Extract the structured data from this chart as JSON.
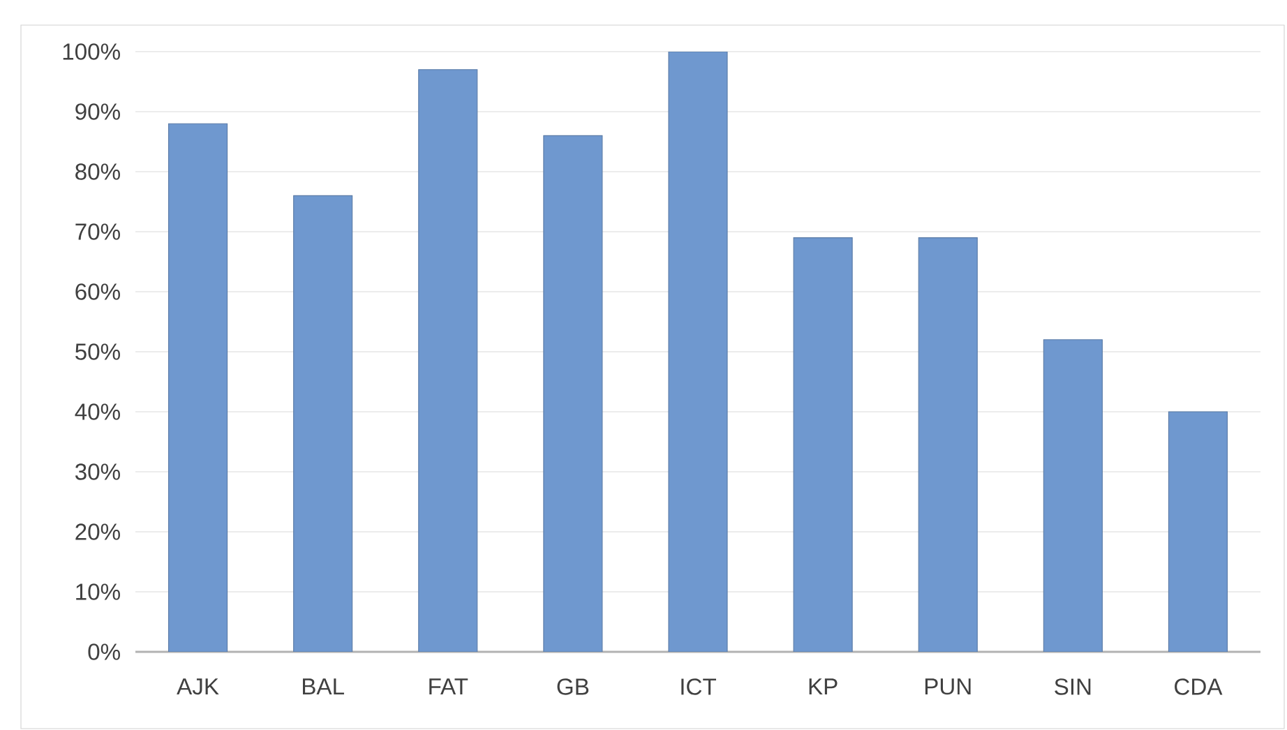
{
  "chart_data": {
    "type": "bar",
    "categories": [
      "AJK",
      "BAL",
      "FAT",
      "GB",
      "ICT",
      "KP",
      "PUN",
      "SIN",
      "CDA"
    ],
    "values": [
      88,
      76,
      97,
      86,
      100,
      69,
      69,
      52,
      40
    ],
    "color": "#6f98cf",
    "ylim": [
      0,
      100
    ],
    "yticks": [
      {
        "value": 0,
        "label": "0%"
      },
      {
        "value": 10,
        "label": "10%"
      },
      {
        "value": 20,
        "label": "20%"
      },
      {
        "value": 30,
        "label": "30%"
      },
      {
        "value": 40,
        "label": "40%"
      },
      {
        "value": 50,
        "label": "50%"
      },
      {
        "value": 60,
        "label": "60%"
      },
      {
        "value": 70,
        "label": "70%"
      },
      {
        "value": 80,
        "label": "80%"
      },
      {
        "value": 90,
        "label": "90%"
      },
      {
        "value": 100,
        "label": "100%"
      }
    ],
    "grid": "y"
  }
}
